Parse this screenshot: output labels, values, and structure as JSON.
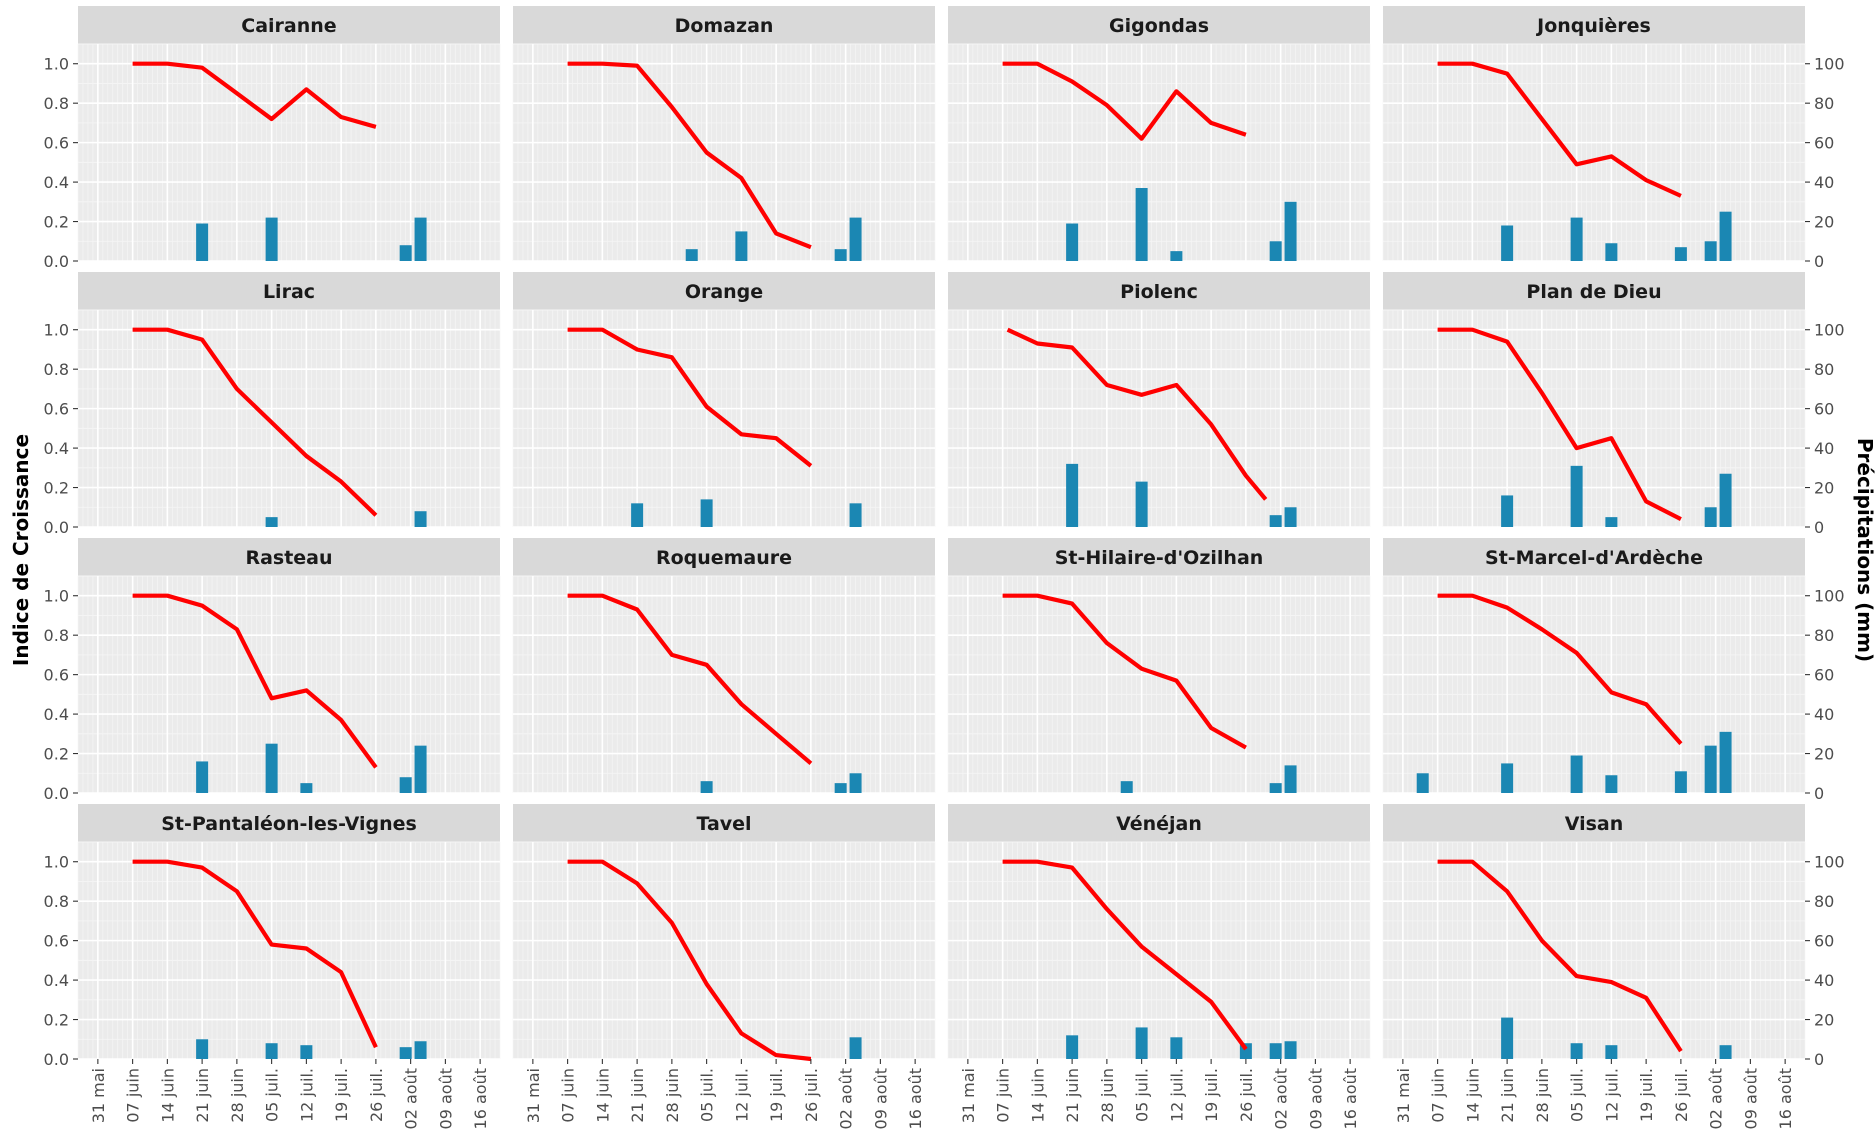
{
  "chart_data": {
    "type": "line",
    "layout": "facet grid 4x4, line on left axis, bars on right axis",
    "ylabel_left": "Indice de Croissance",
    "ylabel_right": "Précipitations (mm)",
    "left_axis": {
      "ylim": [
        0,
        1.1
      ],
      "ticks": [
        "0.0",
        "0.2",
        "0.4",
        "0.6",
        "0.8",
        "1.0"
      ]
    },
    "right_axis": {
      "ylim": [
        0,
        110
      ],
      "ticks": [
        "0",
        "20",
        "40",
        "60",
        "80",
        "100"
      ]
    },
    "x_ticks": [
      "31 mai",
      "07 juin",
      "14 juin",
      "21 juin",
      "28 juin",
      "05 juil.",
      "12 juil.",
      "19 juil.",
      "26 juil.",
      "02 août",
      "09 août",
      "16 août"
    ],
    "grid": true,
    "colors": {
      "line": "#ff0000",
      "bar": "#1b87b3",
      "panel_bg": "#ebebeb",
      "strip_bg": "#d9d9d9"
    },
    "panels": [
      {
        "title": "Cairanne",
        "growth": [
          [
            "06-07",
            1.0
          ],
          [
            "06-14",
            1.0
          ],
          [
            "06-21",
            0.98
          ],
          [
            "06-28",
            0.85
          ],
          [
            "07-05",
            0.72
          ],
          [
            "07-12",
            0.87
          ],
          [
            "07-19",
            0.73
          ],
          [
            "07-26",
            0.68
          ]
        ],
        "rain": [
          [
            "06-21",
            19
          ],
          [
            "07-05",
            22
          ],
          [
            "08-01",
            8
          ],
          [
            "08-04",
            22
          ]
        ]
      },
      {
        "title": "Domazan",
        "growth": [
          [
            "06-07",
            1.0
          ],
          [
            "06-14",
            1.0
          ],
          [
            "06-21",
            0.99
          ],
          [
            "06-28",
            0.78
          ],
          [
            "07-05",
            0.55
          ],
          [
            "07-12",
            0.42
          ],
          [
            "07-19",
            0.14
          ],
          [
            "07-26",
            0.07
          ]
        ],
        "rain": [
          [
            "07-02",
            6
          ],
          [
            "07-12",
            15
          ],
          [
            "08-01",
            6
          ],
          [
            "08-04",
            22
          ]
        ]
      },
      {
        "title": "Gigondas",
        "growth": [
          [
            "06-07",
            1.0
          ],
          [
            "06-14",
            1.0
          ],
          [
            "06-21",
            0.91
          ],
          [
            "06-28",
            0.79
          ],
          [
            "07-05",
            0.62
          ],
          [
            "07-12",
            0.86
          ],
          [
            "07-19",
            0.7
          ],
          [
            "07-26",
            0.64
          ]
        ],
        "rain": [
          [
            "06-21",
            19
          ],
          [
            "07-05",
            37
          ],
          [
            "07-12",
            5
          ],
          [
            "08-01",
            10
          ],
          [
            "08-04",
            30
          ]
        ]
      },
      {
        "title": "Jonquières",
        "growth": [
          [
            "06-07",
            1.0
          ],
          [
            "06-14",
            1.0
          ],
          [
            "06-21",
            0.95
          ],
          [
            "06-28",
            0.72
          ],
          [
            "07-05",
            0.49
          ],
          [
            "07-12",
            0.53
          ],
          [
            "07-19",
            0.41
          ],
          [
            "07-26",
            0.33
          ]
        ],
        "rain": [
          [
            "06-21",
            18
          ],
          [
            "07-05",
            22
          ],
          [
            "07-12",
            9
          ],
          [
            "07-26",
            7
          ],
          [
            "08-01",
            10
          ],
          [
            "08-04",
            25
          ]
        ]
      },
      {
        "title": "Lirac",
        "growth": [
          [
            "06-07",
            1.0
          ],
          [
            "06-14",
            1.0
          ],
          [
            "06-21",
            0.95
          ],
          [
            "06-28",
            0.7
          ],
          [
            "07-05",
            0.53
          ],
          [
            "07-12",
            0.36
          ],
          [
            "07-19",
            0.23
          ],
          [
            "07-26",
            0.06
          ]
        ],
        "rain": [
          [
            "07-05",
            5
          ],
          [
            "08-04",
            8
          ]
        ]
      },
      {
        "title": "Orange",
        "growth": [
          [
            "06-07",
            1.0
          ],
          [
            "06-14",
            1.0
          ],
          [
            "06-21",
            0.9
          ],
          [
            "06-28",
            0.86
          ],
          [
            "07-05",
            0.61
          ],
          [
            "07-12",
            0.47
          ],
          [
            "07-19",
            0.45
          ],
          [
            "07-26",
            0.31
          ]
        ],
        "rain": [
          [
            "06-21",
            12
          ],
          [
            "07-05",
            14
          ],
          [
            "08-04",
            12
          ]
        ]
      },
      {
        "title": "Piolenc",
        "growth": [
          [
            "06-08",
            1.0
          ],
          [
            "06-14",
            0.93
          ],
          [
            "06-21",
            0.91
          ],
          [
            "06-28",
            0.72
          ],
          [
            "07-05",
            0.67
          ],
          [
            "07-12",
            0.72
          ],
          [
            "07-19",
            0.52
          ],
          [
            "07-26",
            0.26
          ],
          [
            "07-30",
            0.14
          ]
        ],
        "rain": [
          [
            "06-21",
            32
          ],
          [
            "07-05",
            23
          ],
          [
            "08-01",
            6
          ],
          [
            "08-04",
            10
          ]
        ]
      },
      {
        "title": "Plan de Dieu",
        "growth": [
          [
            "06-07",
            1.0
          ],
          [
            "06-14",
            1.0
          ],
          [
            "06-21",
            0.94
          ],
          [
            "06-28",
            0.68
          ],
          [
            "07-05",
            0.4
          ],
          [
            "07-12",
            0.45
          ],
          [
            "07-19",
            0.13
          ],
          [
            "07-26",
            0.04
          ]
        ],
        "rain": [
          [
            "06-21",
            16
          ],
          [
            "07-05",
            31
          ],
          [
            "07-12",
            5
          ],
          [
            "08-01",
            10
          ],
          [
            "08-04",
            27
          ]
        ]
      },
      {
        "title": "Rasteau",
        "growth": [
          [
            "06-07",
            1.0
          ],
          [
            "06-14",
            1.0
          ],
          [
            "06-21",
            0.95
          ],
          [
            "06-28",
            0.83
          ],
          [
            "07-05",
            0.48
          ],
          [
            "07-12",
            0.52
          ],
          [
            "07-19",
            0.37
          ],
          [
            "07-26",
            0.13
          ]
        ],
        "rain": [
          [
            "06-21",
            16
          ],
          [
            "07-05",
            25
          ],
          [
            "07-12",
            5
          ],
          [
            "08-01",
            8
          ],
          [
            "08-04",
            24
          ]
        ]
      },
      {
        "title": "Roquemaure",
        "growth": [
          [
            "06-07",
            1.0
          ],
          [
            "06-14",
            1.0
          ],
          [
            "06-21",
            0.93
          ],
          [
            "06-28",
            0.7
          ],
          [
            "07-05",
            0.65
          ],
          [
            "07-12",
            0.45
          ],
          [
            "07-19",
            0.3
          ],
          [
            "07-26",
            0.15
          ]
        ],
        "rain": [
          [
            "07-05",
            6
          ],
          [
            "08-01",
            5
          ],
          [
            "08-04",
            10
          ]
        ]
      },
      {
        "title": "St-Hilaire-d'Ozilhan",
        "growth": [
          [
            "06-07",
            1.0
          ],
          [
            "06-14",
            1.0
          ],
          [
            "06-21",
            0.96
          ],
          [
            "06-28",
            0.76
          ],
          [
            "07-05",
            0.63
          ],
          [
            "07-12",
            0.57
          ],
          [
            "07-19",
            0.33
          ],
          [
            "07-26",
            0.23
          ]
        ],
        "rain": [
          [
            "07-02",
            6
          ],
          [
            "08-01",
            5
          ],
          [
            "08-04",
            14
          ]
        ]
      },
      {
        "title": "St-Marcel-d'Ardèche",
        "growth": [
          [
            "06-07",
            1.0
          ],
          [
            "06-14",
            1.0
          ],
          [
            "06-21",
            0.94
          ],
          [
            "06-28",
            0.83
          ],
          [
            "07-05",
            0.71
          ],
          [
            "07-12",
            0.51
          ],
          [
            "07-19",
            0.45
          ],
          [
            "07-26",
            0.25
          ]
        ],
        "rain": [
          [
            "06-04",
            10
          ],
          [
            "06-21",
            15
          ],
          [
            "07-05",
            19
          ],
          [
            "07-12",
            9
          ],
          [
            "07-26",
            11
          ],
          [
            "08-01",
            24
          ],
          [
            "08-04",
            31
          ]
        ]
      },
      {
        "title": "St-Pantaléon-les-Vignes",
        "growth": [
          [
            "06-07",
            1.0
          ],
          [
            "06-14",
            1.0
          ],
          [
            "06-21",
            0.97
          ],
          [
            "06-28",
            0.85
          ],
          [
            "07-05",
            0.58
          ],
          [
            "07-12",
            0.56
          ],
          [
            "07-19",
            0.44
          ],
          [
            "07-26",
            0.06
          ]
        ],
        "rain": [
          [
            "06-21",
            10
          ],
          [
            "07-05",
            8
          ],
          [
            "07-12",
            7
          ],
          [
            "08-01",
            6
          ],
          [
            "08-04",
            9
          ]
        ]
      },
      {
        "title": "Tavel",
        "growth": [
          [
            "06-07",
            1.0
          ],
          [
            "06-14",
            1.0
          ],
          [
            "06-21",
            0.89
          ],
          [
            "06-28",
            0.69
          ],
          [
            "07-05",
            0.38
          ],
          [
            "07-12",
            0.13
          ],
          [
            "07-19",
            0.02
          ],
          [
            "07-26",
            0.0
          ]
        ],
        "rain": [
          [
            "08-04",
            11
          ]
        ]
      },
      {
        "title": "Vénéjan",
        "growth": [
          [
            "06-07",
            1.0
          ],
          [
            "06-14",
            1.0
          ],
          [
            "06-21",
            0.97
          ],
          [
            "06-28",
            0.76
          ],
          [
            "07-05",
            0.57
          ],
          [
            "07-12",
            0.43
          ],
          [
            "07-19",
            0.29
          ],
          [
            "07-26",
            0.05
          ]
        ],
        "rain": [
          [
            "06-21",
            12
          ],
          [
            "07-05",
            16
          ],
          [
            "07-12",
            11
          ],
          [
            "07-26",
            8
          ],
          [
            "08-01",
            8
          ],
          [
            "08-04",
            9
          ]
        ]
      },
      {
        "title": "Visan",
        "growth": [
          [
            "06-07",
            1.0
          ],
          [
            "06-14",
            1.0
          ],
          [
            "06-21",
            0.85
          ],
          [
            "06-28",
            0.6
          ],
          [
            "07-05",
            0.42
          ],
          [
            "07-12",
            0.39
          ],
          [
            "07-19",
            0.31
          ],
          [
            "07-26",
            0.04
          ]
        ],
        "rain": [
          [
            "06-21",
            21
          ],
          [
            "07-05",
            8
          ],
          [
            "07-12",
            7
          ],
          [
            "08-04",
            7
          ]
        ]
      }
    ]
  }
}
